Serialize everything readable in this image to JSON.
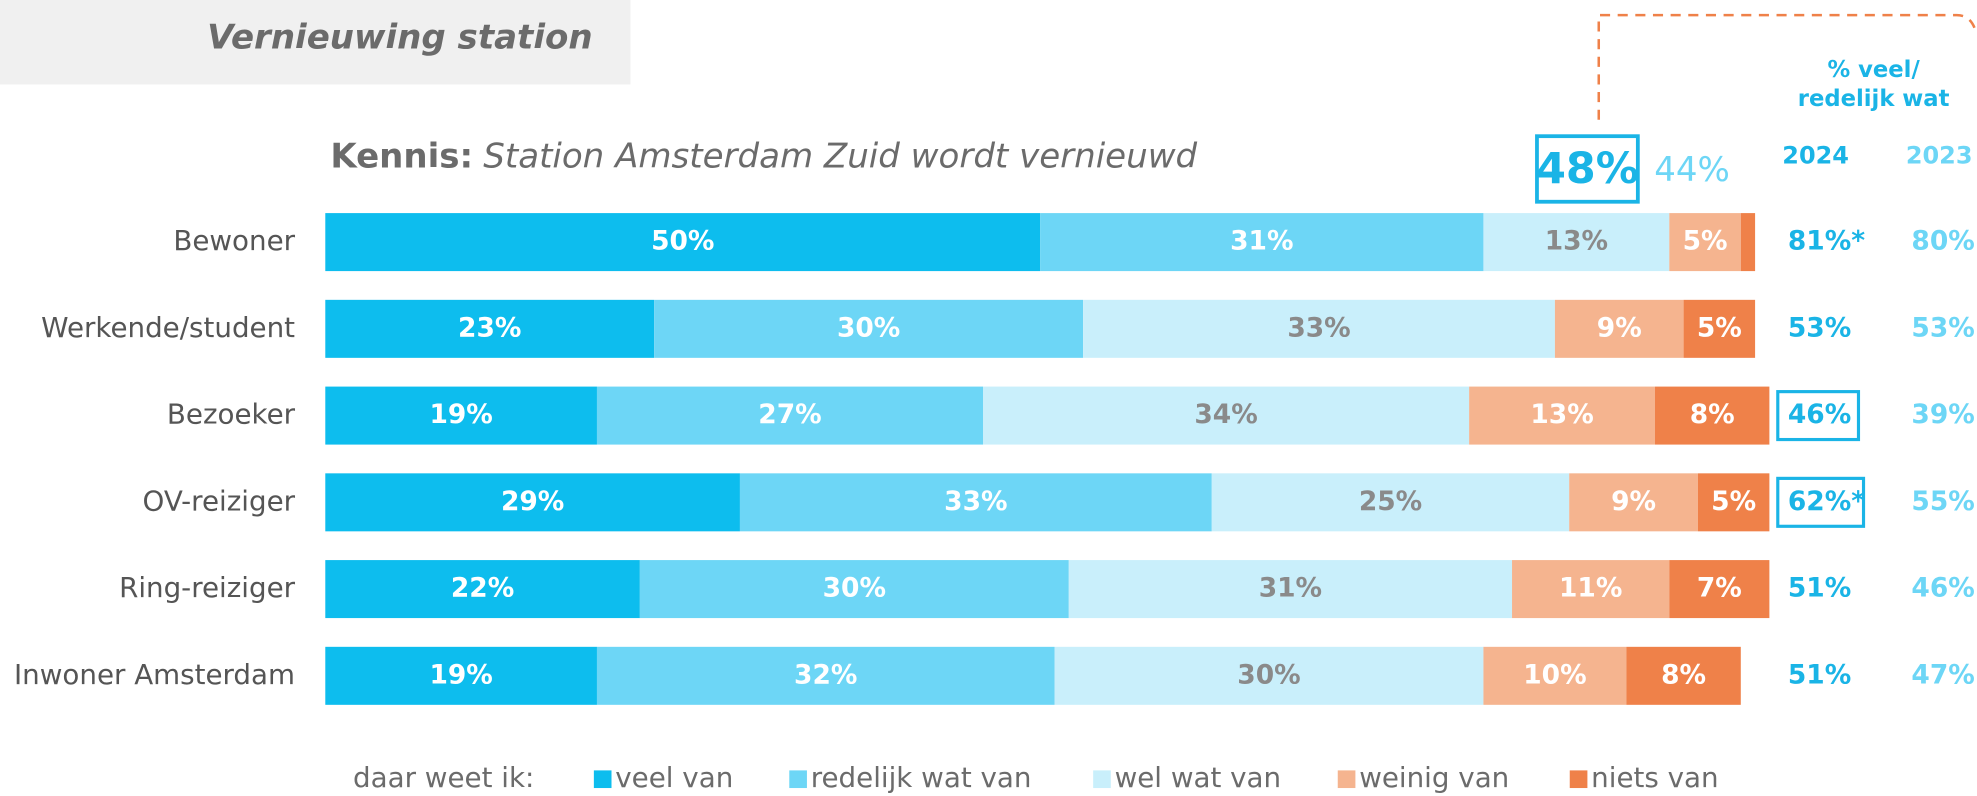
{
  "section_title": "Vernieuwing station",
  "chart_data": {
    "type": "stacked-bar-horizontal",
    "title": {
      "prefix": "Kennis:",
      "emphasis": "Station Amsterdam Zuid wordt vernieuwd"
    },
    "categories": [
      "Bewoner",
      "Werkende/student",
      "Bezoeker",
      "OV-reiziger",
      "Ring-reiziger",
      "Inwoner Amsterdam"
    ],
    "xlim": [
      0,
      100
    ],
    "legend_prefix": "daar weet ik:",
    "series": [
      {
        "name": "veel van",
        "color": "#0dbdee",
        "label_color": "#ffffff",
        "values": [
          50,
          23,
          19,
          29,
          22,
          19
        ],
        "value_labels": [
          "50%",
          "23%",
          "19%",
          "29%",
          "22%",
          "19%"
        ]
      },
      {
        "name": "redelijk wat van",
        "color": "#6dd6f6",
        "label_color": "#ffffff",
        "values": [
          31,
          30,
          27,
          33,
          30,
          32
        ],
        "value_labels": [
          "31%",
          "30%",
          "27%",
          "33%",
          "30%",
          "32%"
        ]
      },
      {
        "name": "wel wat van",
        "color": "#c9effb",
        "label_color": "#8a8a8a",
        "values": [
          13,
          33,
          34,
          25,
          31,
          30
        ],
        "value_labels": [
          "13%",
          "33%",
          "34%",
          "25%",
          "31%",
          "30%"
        ]
      },
      {
        "name": "weinig van",
        "color": "#f5b48f",
        "label_color": "#ffffff",
        "values": [
          5,
          9,
          13,
          9,
          11,
          10
        ],
        "value_labels": [
          "5%",
          "9%",
          "13%",
          "9%",
          "11%",
          "10%"
        ]
      },
      {
        "name": "niets van",
        "color": "#ef8149",
        "label_color": "#ffffff",
        "values": [
          1,
          5,
          8,
          5,
          7,
          8
        ],
        "value_labels": [
          null,
          "5%",
          "8%",
          "5%",
          "7%",
          "8%"
        ]
      }
    ],
    "summary": {
      "header": [
        "% veel/",
        "redelijk wat"
      ],
      "columns": [
        {
          "year": "2024",
          "color": "#1ab4e6",
          "values": [
            81,
            53,
            46,
            62,
            51,
            51
          ],
          "value_labels": [
            "81%*",
            "53%",
            "46%",
            "62%*",
            "51%",
            "51%"
          ],
          "boxed": [
            false,
            false,
            true,
            true,
            false,
            false
          ],
          "total": 48,
          "total_label": "48%",
          "total_boxed": true
        },
        {
          "year": "2023",
          "color": "#6dd6f6",
          "values": [
            80,
            53,
            39,
            55,
            46,
            47
          ],
          "value_labels": [
            "80%",
            "53%",
            "39%",
            "55%",
            "46%",
            "47%"
          ],
          "boxed": [
            false,
            false,
            false,
            false,
            false,
            false
          ],
          "total": 44,
          "total_label": "44%",
          "total_boxed": false
        }
      ]
    }
  }
}
